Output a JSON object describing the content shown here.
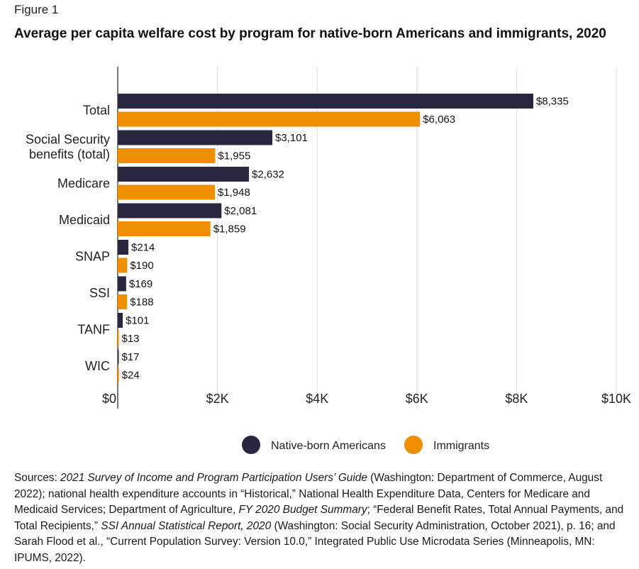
{
  "figure_label": "Figure 1",
  "title": "Average per capita welfare cost by program for native-born Americans and immigrants, 2020",
  "colors": {
    "native": "#2b2640",
    "immigrant": "#ee8f00",
    "grid": "#dcdcdc",
    "axis": "#333333"
  },
  "chart_data": {
    "type": "bar",
    "orientation": "horizontal",
    "categories": [
      [
        "Total"
      ],
      [
        "Social Security",
        "benefits (total)"
      ],
      [
        "Medicare"
      ],
      [
        "Medicaid"
      ],
      [
        "SNAP"
      ],
      [
        "SSI"
      ],
      [
        "TANF"
      ],
      [
        "WIC"
      ]
    ],
    "series": [
      {
        "name": "Native-born Americans",
        "values": [
          8335,
          3101,
          2632,
          2081,
          214,
          169,
          101,
          17
        ],
        "labels": [
          "$8,335",
          "$3,101",
          "$2,632",
          "$2,081",
          "$214",
          "$169",
          "$101",
          "$17"
        ]
      },
      {
        "name": "Immigrants",
        "values": [
          6063,
          1955,
          1948,
          1859,
          190,
          188,
          13,
          24
        ],
        "labels": [
          "$6,063",
          "$1,955",
          "$1,948",
          "$1,859",
          "$190",
          "$188",
          "$13",
          "$24"
        ]
      }
    ],
    "xlim": [
      0,
      10000
    ],
    "xticks": [
      0,
      2000,
      4000,
      6000,
      8000,
      10000
    ],
    "xtick_labels": [
      "$0",
      "$2K",
      "$4K",
      "$6K",
      "$8K",
      "$10K"
    ],
    "grid": true,
    "legend_position": "bottom-center"
  },
  "sources": [
    {
      "t": "Sources: "
    },
    {
      "t": "2021 Survey of Income and Program Participation Users’ Guide",
      "i": true
    },
    {
      "t": " (Washington: Department of Commerce, August 2022); national health expenditure accounts in “Historical,” National Health Expenditure Data, Centers for Medicare and Medicaid Services; Department of Agriculture, "
    },
    {
      "t": "FY 2020 Budget Summary",
      "i": true
    },
    {
      "t": "; “Federal Benefit Rates, Total Annual Payments, and Total Recipients,” "
    },
    {
      "t": "SSI Annual Statistical Report, 2020",
      "i": true
    },
    {
      "t": " (Washington: Social Security Administration, October 2021), p. 16; and Sarah Flood et al., “Current Population Survey: Version 10.0,” Integrated Public Use Microdata Series (Minneapolis, MN: IPUMS, 2022)."
    }
  ]
}
